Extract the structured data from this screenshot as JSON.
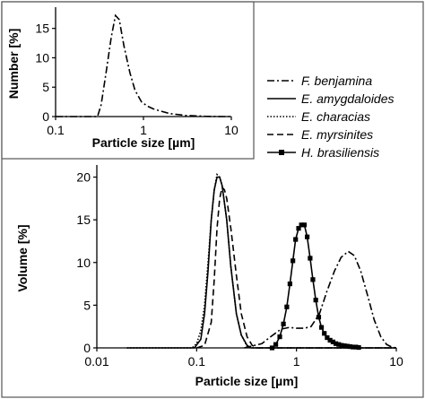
{
  "chart_data": [
    {
      "id": "inset",
      "type": "line",
      "x_scale": "log",
      "xlim": [
        0.1,
        10
      ],
      "ylim": [
        0,
        18
      ],
      "xticks": [
        "0.1",
        "1",
        "10"
      ],
      "yticks": [
        "0",
        "5",
        "10",
        "15"
      ],
      "xlabel": "Particle size [µm]",
      "ylabel": "Number [%]",
      "series": [
        {
          "name": "F. benjamina",
          "dash": "dashdot",
          "points": [
            [
              0.1,
              0
            ],
            [
              0.3,
              0
            ],
            [
              0.33,
              2
            ],
            [
              0.38,
              8
            ],
            [
              0.43,
              13.5
            ],
            [
              0.48,
              17.2
            ],
            [
              0.53,
              16.5
            ],
            [
              0.6,
              12
            ],
            [
              0.7,
              7.5
            ],
            [
              0.8,
              4.5
            ],
            [
              0.95,
              2.5
            ],
            [
              1.1,
              1.8
            ],
            [
              1.3,
              1.3
            ],
            [
              1.6,
              0.9
            ],
            [
              2,
              0.5
            ],
            [
              3,
              0.2
            ],
            [
              5,
              0.05
            ],
            [
              8,
              0
            ],
            [
              10,
              0
            ]
          ]
        }
      ]
    },
    {
      "id": "main",
      "type": "line",
      "x_scale": "log",
      "xlim": [
        0.01,
        10
      ],
      "ylim": [
        0,
        21
      ],
      "xticks": [
        "0.01",
        "0.1",
        "1",
        "10"
      ],
      "yticks": [
        "0",
        "5",
        "10",
        "15",
        "20"
      ],
      "xlabel": "Particle size [µm]",
      "ylabel": "Volume [%]",
      "legend_position": "right",
      "series": [
        {
          "name": "F. benjamina",
          "dash": "dashdot",
          "points": [
            [
              0.3,
              0
            ],
            [
              0.45,
              0.5
            ],
            [
              0.55,
              1.3
            ],
            [
              0.7,
              2.2
            ],
            [
              0.85,
              2.4
            ],
            [
              1.0,
              2.3
            ],
            [
              1.2,
              2.3
            ],
            [
              1.4,
              2.5
            ],
            [
              1.7,
              4
            ],
            [
              2.0,
              6.5
            ],
            [
              2.4,
              9
            ],
            [
              2.8,
              10.6
            ],
            [
              3.3,
              11.3
            ],
            [
              3.8,
              10.8
            ],
            [
              4.4,
              9
            ],
            [
              5.2,
              6
            ],
            [
              6,
              3.3
            ],
            [
              7,
              1.3
            ],
            [
              8,
              0.4
            ],
            [
              9,
              0.1
            ],
            [
              10,
              0
            ]
          ]
        },
        {
          "name": "E. amygdaloides",
          "dash": "solid",
          "points": [
            [
              0.02,
              0
            ],
            [
              0.095,
              0
            ],
            [
              0.11,
              1
            ],
            [
              0.12,
              4
            ],
            [
              0.13,
              9
            ],
            [
              0.14,
              15
            ],
            [
              0.15,
              18.5
            ],
            [
              0.16,
              20
            ],
            [
              0.17,
              20
            ],
            [
              0.18,
              19
            ],
            [
              0.2,
              15
            ],
            [
              0.22,
              9.5
            ],
            [
              0.25,
              4
            ],
            [
              0.28,
              1.5
            ],
            [
              0.32,
              0.3
            ],
            [
              0.35,
              0
            ],
            [
              10,
              0
            ]
          ]
        },
        {
          "name": "E. characias",
          "dash": "dotted",
          "points": [
            [
              0.02,
              0
            ],
            [
              0.09,
              0
            ],
            [
              0.1,
              0.5
            ],
            [
              0.11,
              2
            ],
            [
              0.12,
              5
            ],
            [
              0.13,
              10
            ],
            [
              0.14,
              15
            ],
            [
              0.15,
              18.5
            ],
            [
              0.16,
              20.3
            ],
            [
              0.17,
              20
            ],
            [
              0.18,
              19
            ],
            [
              0.2,
              15
            ],
            [
              0.22,
              9.5
            ],
            [
              0.25,
              4
            ],
            [
              0.28,
              1.5
            ],
            [
              0.32,
              0.2
            ],
            [
              0.35,
              0
            ],
            [
              10,
              0
            ]
          ]
        },
        {
          "name": "E. myrsinites",
          "dash": "dashed",
          "points": [
            [
              0.1,
              0
            ],
            [
              0.12,
              0.3
            ],
            [
              0.14,
              3
            ],
            [
              0.15,
              8
            ],
            [
              0.16,
              14
            ],
            [
              0.17,
              17.5
            ],
            [
              0.18,
              18.8
            ],
            [
              0.19,
              18.5
            ],
            [
              0.2,
              17.5
            ],
            [
              0.22,
              14
            ],
            [
              0.25,
              8.5
            ],
            [
              0.28,
              4
            ],
            [
              0.32,
              1.3
            ],
            [
              0.36,
              0.3
            ],
            [
              0.4,
              0
            ],
            [
              10,
              0
            ]
          ]
        },
        {
          "name": "H. brasiliensis",
          "dash": "solid",
          "marker": "square",
          "points": [
            [
              0.57,
              0
            ],
            [
              0.62,
              0.4
            ],
            [
              0.68,
              1.3
            ],
            [
              0.74,
              2.8
            ],
            [
              0.8,
              4.8
            ],
            [
              0.86,
              7.5
            ],
            [
              0.92,
              10.2
            ],
            [
              0.98,
              12.7
            ],
            [
              1.05,
              14
            ],
            [
              1.12,
              14.4
            ],
            [
              1.2,
              14.4
            ],
            [
              1.28,
              13
            ],
            [
              1.37,
              10.5
            ],
            [
              1.46,
              8
            ],
            [
              1.56,
              5.6
            ],
            [
              1.67,
              3.6
            ],
            [
              1.78,
              2.4
            ],
            [
              1.9,
              1.7
            ],
            [
              2.03,
              1.2
            ],
            [
              2.17,
              0.9
            ],
            [
              2.32,
              0.7
            ],
            [
              2.48,
              0.5
            ],
            [
              2.65,
              0.4
            ],
            [
              2.83,
              0.3
            ],
            [
              3.02,
              0.25
            ],
            [
              3.23,
              0.2
            ],
            [
              3.45,
              0.15
            ],
            [
              3.68,
              0.1
            ],
            [
              3.93,
              0.1
            ],
            [
              4.2,
              0.05
            ]
          ]
        }
      ]
    }
  ],
  "legend": {
    "items": [
      {
        "label": "F. benjamina",
        "dash": "dashdot"
      },
      {
        "label": "E. amygdaloides",
        "dash": "solid"
      },
      {
        "label": "E. characias",
        "dash": "dotted"
      },
      {
        "label": "E. myrsinites",
        "dash": "dashed"
      },
      {
        "label": "H. brasiliensis",
        "dash": "solid",
        "marker": "square"
      }
    ]
  }
}
